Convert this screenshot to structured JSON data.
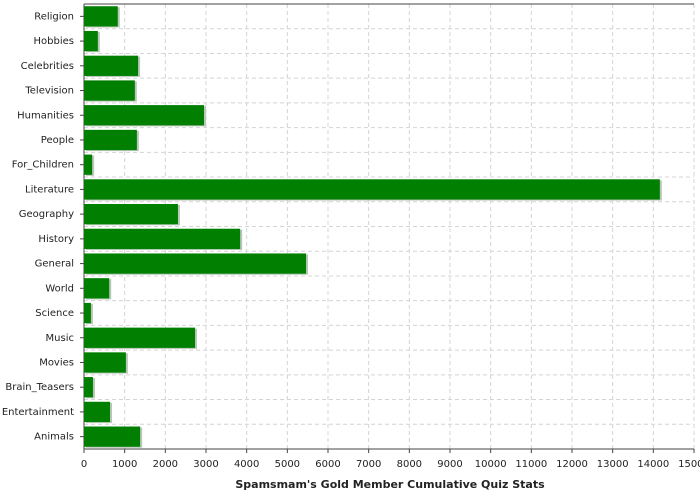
{
  "chart_data": {
    "type": "barh",
    "x_label": "Spamsmam's Gold Member Cumulative Quiz Stats",
    "categories": [
      "Religion",
      "Hobbies",
      "Celebrities",
      "Television",
      "Humanities",
      "People",
      "For_Children",
      "Literature",
      "Geography",
      "History",
      "General",
      "World",
      "Science",
      "Music",
      "Movies",
      "Brain_Teasers",
      "Entertainment",
      "Animals"
    ],
    "values": [
      830,
      340,
      1330,
      1250,
      2950,
      1300,
      200,
      14160,
      2310,
      3840,
      5460,
      620,
      170,
      2730,
      1030,
      220,
      640,
      1380
    ],
    "color": "#007f00",
    "xlim": [
      0,
      15000
    ],
    "xticks": [
      0,
      1000,
      2000,
      3000,
      4000,
      5000,
      6000,
      7000,
      8000,
      9000,
      10000,
      11000,
      12000,
      13000,
      14000,
      15000
    ],
    "grid": true
  }
}
